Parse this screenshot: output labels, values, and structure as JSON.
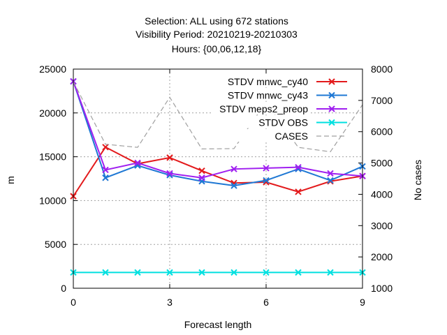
{
  "chart_data": {
    "type": "line",
    "title_lines": [
      "Selection: ALL using   672 stations",
      "Visibility   Period: 20210219-20210303",
      "Hours: {00,06,12,18}"
    ],
    "xlabel": "Forecast length",
    "ylabel": "m",
    "y2label": "No cases",
    "x": [
      0,
      1,
      2,
      3,
      4,
      5,
      6,
      7,
      8,
      9
    ],
    "xlim": [
      0,
      9
    ],
    "ylim": [
      0,
      25000
    ],
    "y2lim": [
      1000,
      8000
    ],
    "xticks": [
      "0",
      "3",
      "6",
      "9"
    ],
    "xtick_values": [
      0,
      3,
      6,
      9
    ],
    "yticks": [
      "0",
      "5000",
      "10000",
      "15000",
      "20000",
      "25000"
    ],
    "ytick_values": [
      0,
      5000,
      10000,
      15000,
      20000,
      25000
    ],
    "y2ticks": [
      "1000",
      "2000",
      "3000",
      "4000",
      "5000",
      "6000",
      "7000",
      "8000"
    ],
    "y2tick_values": [
      1000,
      2000,
      3000,
      4000,
      5000,
      6000,
      7000,
      8000
    ],
    "grid": true,
    "legend_position": "top-right",
    "series": [
      {
        "name": "STDV mnwc_cy40",
        "color": "#e31a1c",
        "marker": "x",
        "axis": "y",
        "values": [
          10500,
          16100,
          14200,
          14900,
          13400,
          12000,
          12100,
          11000,
          12200,
          12800
        ]
      },
      {
        "name": "STDV mnwc_cy43",
        "color": "#1f78d4",
        "marker": "x",
        "axis": "y",
        "values": [
          23600,
          12600,
          14000,
          12900,
          12200,
          11700,
          12300,
          13600,
          12300,
          13900
        ]
      },
      {
        "name": "STDV meps2_preop",
        "color": "#a020f0",
        "marker": "x",
        "axis": "y",
        "values": [
          23600,
          13500,
          14300,
          13100,
          12600,
          13600,
          13700,
          13800,
          13100,
          12800
        ]
      },
      {
        "name": "STDV OBS",
        "color": "#00e0e0",
        "marker": "x",
        "axis": "y",
        "values": [
          1800,
          1800,
          1800,
          1800,
          1800,
          1800,
          1800,
          1800,
          1800,
          1800
        ]
      },
      {
        "name": "CASES",
        "color": "#a0a0a0",
        "marker": "none",
        "dashed": true,
        "axis": "y2",
        "values": [
          7600,
          5600,
          5500,
          7100,
          5450,
          5460,
          6950,
          5500,
          5360,
          6860
        ]
      }
    ]
  }
}
